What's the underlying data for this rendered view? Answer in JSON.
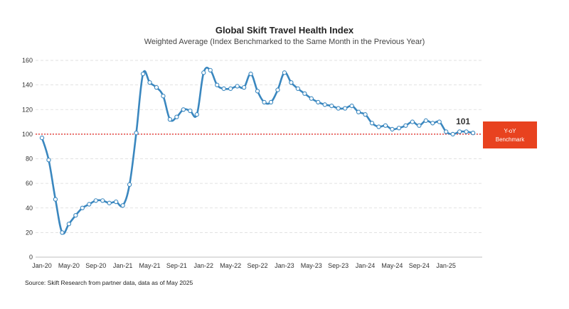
{
  "colors": {
    "line": "#3a87bf",
    "benchmark_line": "#e0201b",
    "benchmark_box": "#e8421f"
  },
  "chart_data": {
    "type": "line",
    "title": "Global Skift Travel Health Index",
    "subtitle": "Weighted Average (Index Benchmarked to the Same Month in the Previous Year)",
    "xlabel": "",
    "ylabel": "",
    "ylim": [
      0,
      160
    ],
    "yticks": [
      0,
      20,
      40,
      60,
      80,
      100,
      120,
      140,
      160
    ],
    "grid": true,
    "xtick_labels": [
      "Jan-20",
      "May-20",
      "Sep-20",
      "Jan-21",
      "May-21",
      "Sep-21",
      "Jan-22",
      "May-22",
      "Sep-22",
      "Jan-23",
      "May-23",
      "Sep-23",
      "Jan-24",
      "May-24",
      "Sep-24",
      "Jan-25"
    ],
    "benchmark": {
      "value": 100,
      "label_line1": "Y-oY",
      "label_line2": "Benchmark"
    },
    "last_value_label": "101",
    "series": [
      {
        "x": [
          "Jan-20",
          "Feb-20",
          "Mar-20",
          "Apr-20",
          "May-20",
          "Jun-20",
          "Jul-20",
          "Aug-20",
          "Sep-20",
          "Oct-20",
          "Nov-20",
          "Dec-20",
          "Jan-21",
          "Feb-21",
          "Mar-21",
          "Apr-21",
          "May-21",
          "Jun-21",
          "Jul-21",
          "Aug-21",
          "Sep-21",
          "Oct-21",
          "Nov-21",
          "Dec-21",
          "Jan-22",
          "Feb-22",
          "Mar-22",
          "Apr-22",
          "May-22",
          "Jun-22",
          "Jul-22",
          "Aug-22",
          "Sep-22",
          "Oct-22",
          "Nov-22",
          "Dec-22",
          "Jan-23",
          "Feb-23",
          "Mar-23",
          "Apr-23",
          "May-23",
          "Jun-23",
          "Jul-23",
          "Aug-23",
          "Sep-23",
          "Oct-23",
          "Nov-23",
          "Dec-23",
          "Jan-24",
          "Feb-24",
          "Mar-24",
          "Apr-24",
          "May-24",
          "Jun-24",
          "Jul-24",
          "Aug-24",
          "Sep-24",
          "Oct-24",
          "Nov-24",
          "Dec-24",
          "Jan-25",
          "Feb-25",
          "Mar-25",
          "Apr-25",
          "May-25"
        ],
        "values": [
          97,
          79,
          47,
          20,
          27,
          34,
          40,
          43,
          46,
          46,
          44,
          45,
          42,
          59,
          101,
          149,
          142,
          138,
          131,
          112,
          114,
          120,
          119,
          116,
          150,
          152,
          140,
          137,
          137,
          139,
          138,
          149,
          135,
          126,
          126,
          136,
          150,
          142,
          137,
          133,
          129,
          126,
          124,
          123,
          121,
          121,
          123,
          118,
          116,
          109,
          106,
          107,
          104,
          105,
          107,
          110,
          107,
          111,
          109,
          110,
          102,
          100,
          102,
          102,
          101
        ]
      }
    ]
  },
  "source": "Source: Skift Research from partner data, data as of May 2025"
}
